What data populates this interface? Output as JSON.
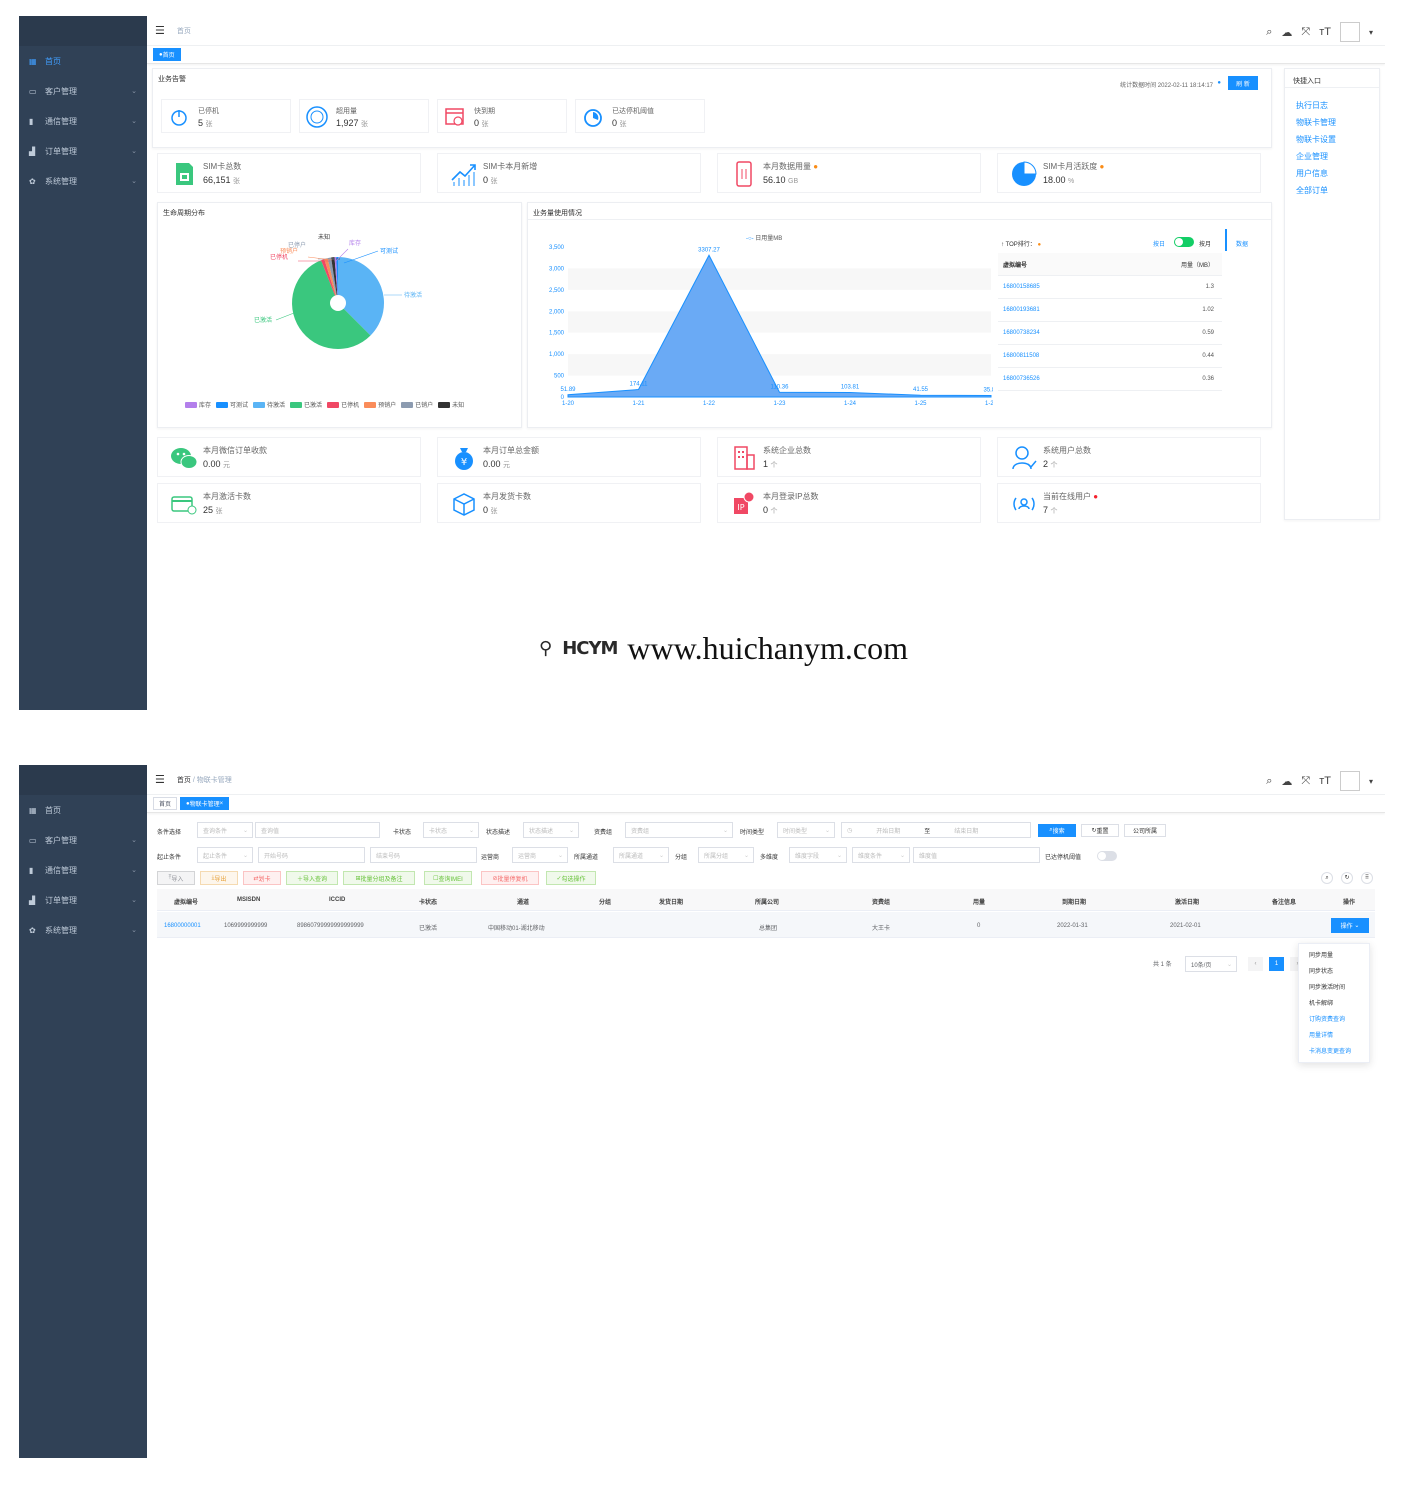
{
  "sidebar": {
    "items": [
      {
        "label": "首页",
        "icon": "dashboard-icon"
      },
      {
        "label": "客户管理",
        "icon": "monitor-icon"
      },
      {
        "label": "通信管理",
        "icon": "book-icon"
      },
      {
        "label": "订单管理",
        "icon": "bar-chart-icon"
      },
      {
        "label": "系统管理",
        "icon": "gear-icon"
      }
    ]
  },
  "screen1": {
    "breadcrumb": "首页",
    "tag": "首页",
    "alert": {
      "title": "业务告警",
      "stat_time_label": "统计数据时间 2022-02-11 18:14:17",
      "refresh": "刷 新",
      "items": [
        {
          "label": "已停机",
          "value": "5",
          "unit": "张"
        },
        {
          "label": "超用量",
          "value": "1,927",
          "unit": "张"
        },
        {
          "label": "快到期",
          "value": "0",
          "unit": "张"
        },
        {
          "label": "已达停机阈值",
          "value": "0",
          "unit": "张"
        }
      ]
    },
    "quick": {
      "title": "快捷入口",
      "links": [
        "执行日志",
        "物联卡管理",
        "物联卡设置",
        "企业管理",
        "用户信息",
        "全部订单"
      ]
    },
    "stats_top": [
      {
        "label": "SIM卡总数",
        "value": "66,151",
        "unit": "张"
      },
      {
        "label": "SIM卡本月新增",
        "value": "0",
        "unit": "张"
      },
      {
        "label": "本月数据用量",
        "value": "56.10",
        "unit": "GB"
      },
      {
        "label": "SIM卡月活跃度",
        "value": "18.00",
        "unit": "%"
      }
    ],
    "lifecycle": {
      "title": "生命周期分布",
      "labels": [
        "未知",
        "库存",
        "可测试",
        "已停户",
        "预销户",
        "已停机",
        "待激活",
        "已激活"
      ],
      "legend": [
        {
          "name": "库存",
          "color": "#b37feb"
        },
        {
          "name": "可测试",
          "color": "#1890ff"
        },
        {
          "name": "待激活",
          "color": "#5ab4f5"
        },
        {
          "name": "已激活",
          "color": "#3ac77e"
        },
        {
          "name": "已停机",
          "color": "#f04864"
        },
        {
          "name": "预销户",
          "color": "#fa8c5a"
        },
        {
          "name": "已销户",
          "color": "#8c9bb0"
        },
        {
          "name": "未知",
          "color": "#333333"
        }
      ]
    },
    "usage": {
      "title": "业务量使用情况",
      "legend": "日用量MB",
      "top_title": "TOP排行：",
      "toggle_left": "按日",
      "toggle_right": "按月",
      "data_link": "数据",
      "col1": "虚拟编号",
      "col2": "用量（MB）",
      "rows": [
        {
          "id": "16800158685",
          "val": "1.3"
        },
        {
          "id": "16800193681",
          "val": "1.02"
        },
        {
          "id": "16800738234",
          "val": "0.59"
        },
        {
          "id": "16800811508",
          "val": "0.44"
        },
        {
          "id": "16800736526",
          "val": "0.36"
        }
      ]
    },
    "stats_bottom": [
      {
        "label": "本月微信订单收款",
        "value": "0.00",
        "unit": "元"
      },
      {
        "label": "本月订单总金额",
        "value": "0.00",
        "unit": "元"
      },
      {
        "label": "系统企业总数",
        "value": "1",
        "unit": "个"
      },
      {
        "label": "系统用户总数",
        "value": "2",
        "unit": "个"
      },
      {
        "label": "本月激活卡数",
        "value": "25",
        "unit": "张"
      },
      {
        "label": "本月发货卡数",
        "value": "0",
        "unit": "张"
      },
      {
        "label": "本月登录IP总数",
        "value": "0",
        "unit": "个"
      },
      {
        "label": "当前在线用户",
        "value": "7",
        "unit": "个"
      }
    ]
  },
  "watermark": {
    "logo": "HCYM",
    "url": "www.huichanym.com"
  },
  "screen2": {
    "breadcrumb_home": "首页",
    "breadcrumb_sep": "/",
    "breadcrumb_cur": "物联卡管理",
    "tags": [
      "首页",
      "物联卡管理"
    ],
    "filters": {
      "cond_label": "条件选择",
      "cond_ph": "查询条件",
      "cond_val_ph": "查询值",
      "card_status_label": "卡状态",
      "card_status_ph": "卡状态",
      "status_desc_label": "状态描述",
      "status_desc_ph": "状态描述",
      "plan_label": "资费组",
      "plan_ph": "资费组",
      "time_type_label": "时间类型",
      "time_type_ph": "时间类型",
      "start_date_ph": "开始日期",
      "to": "至",
      "end_date_ph": "结束日期",
      "search": "搜索",
      "reset": "重置",
      "company": "公司所属",
      "range_label": "起止条件",
      "range_ph": "起止条件",
      "start_no_ph": "开始号码",
      "end_no_ph": "结束号码",
      "operator_label": "运营商",
      "operator_ph": "运营商",
      "channel_label": "所属通道",
      "channel_ph": "所属通道",
      "group_label": "分组",
      "group_ph": "所属分组",
      "dim_label": "多维度",
      "dim_ph": "维度字段",
      "dim_cond_ph": "维度条件",
      "dim_val_ph": "维度值",
      "threshold_label": "已达停机阈值"
    },
    "actions": [
      "导入",
      "导出",
      "划卡",
      "导入查询",
      "批量分组及备注",
      "查询IMEI",
      "批量停复机",
      "勾选操作"
    ],
    "columns": [
      "虚拟编号",
      "MSISDN",
      "ICCID",
      "卡状态",
      "通道",
      "分组",
      "发货日期",
      "所属公司",
      "资费组",
      "用量",
      "到期日期",
      "激活日期",
      "备注信息",
      "操作"
    ],
    "row": {
      "id": "16800000001",
      "msisdn": "1069999999999",
      "iccid": "89860799999999999999",
      "status": "已激活",
      "channel": "中国移动01-湖北移动",
      "group": "",
      "ship": "",
      "company": "总集团",
      "plan": "大王卡",
      "usage": "0",
      "expire": "2022-01-31",
      "activate": "2021-02-01",
      "remark": "",
      "op": "操作"
    },
    "pager": {
      "total": "共 1 条",
      "size": "10条/页",
      "page": "1"
    },
    "dropdown": [
      "同步用量",
      "同步状态",
      "同步激活时间",
      "机卡解绑",
      "订购资费查询",
      "用量详情",
      "卡消息变更查询"
    ]
  }
}
